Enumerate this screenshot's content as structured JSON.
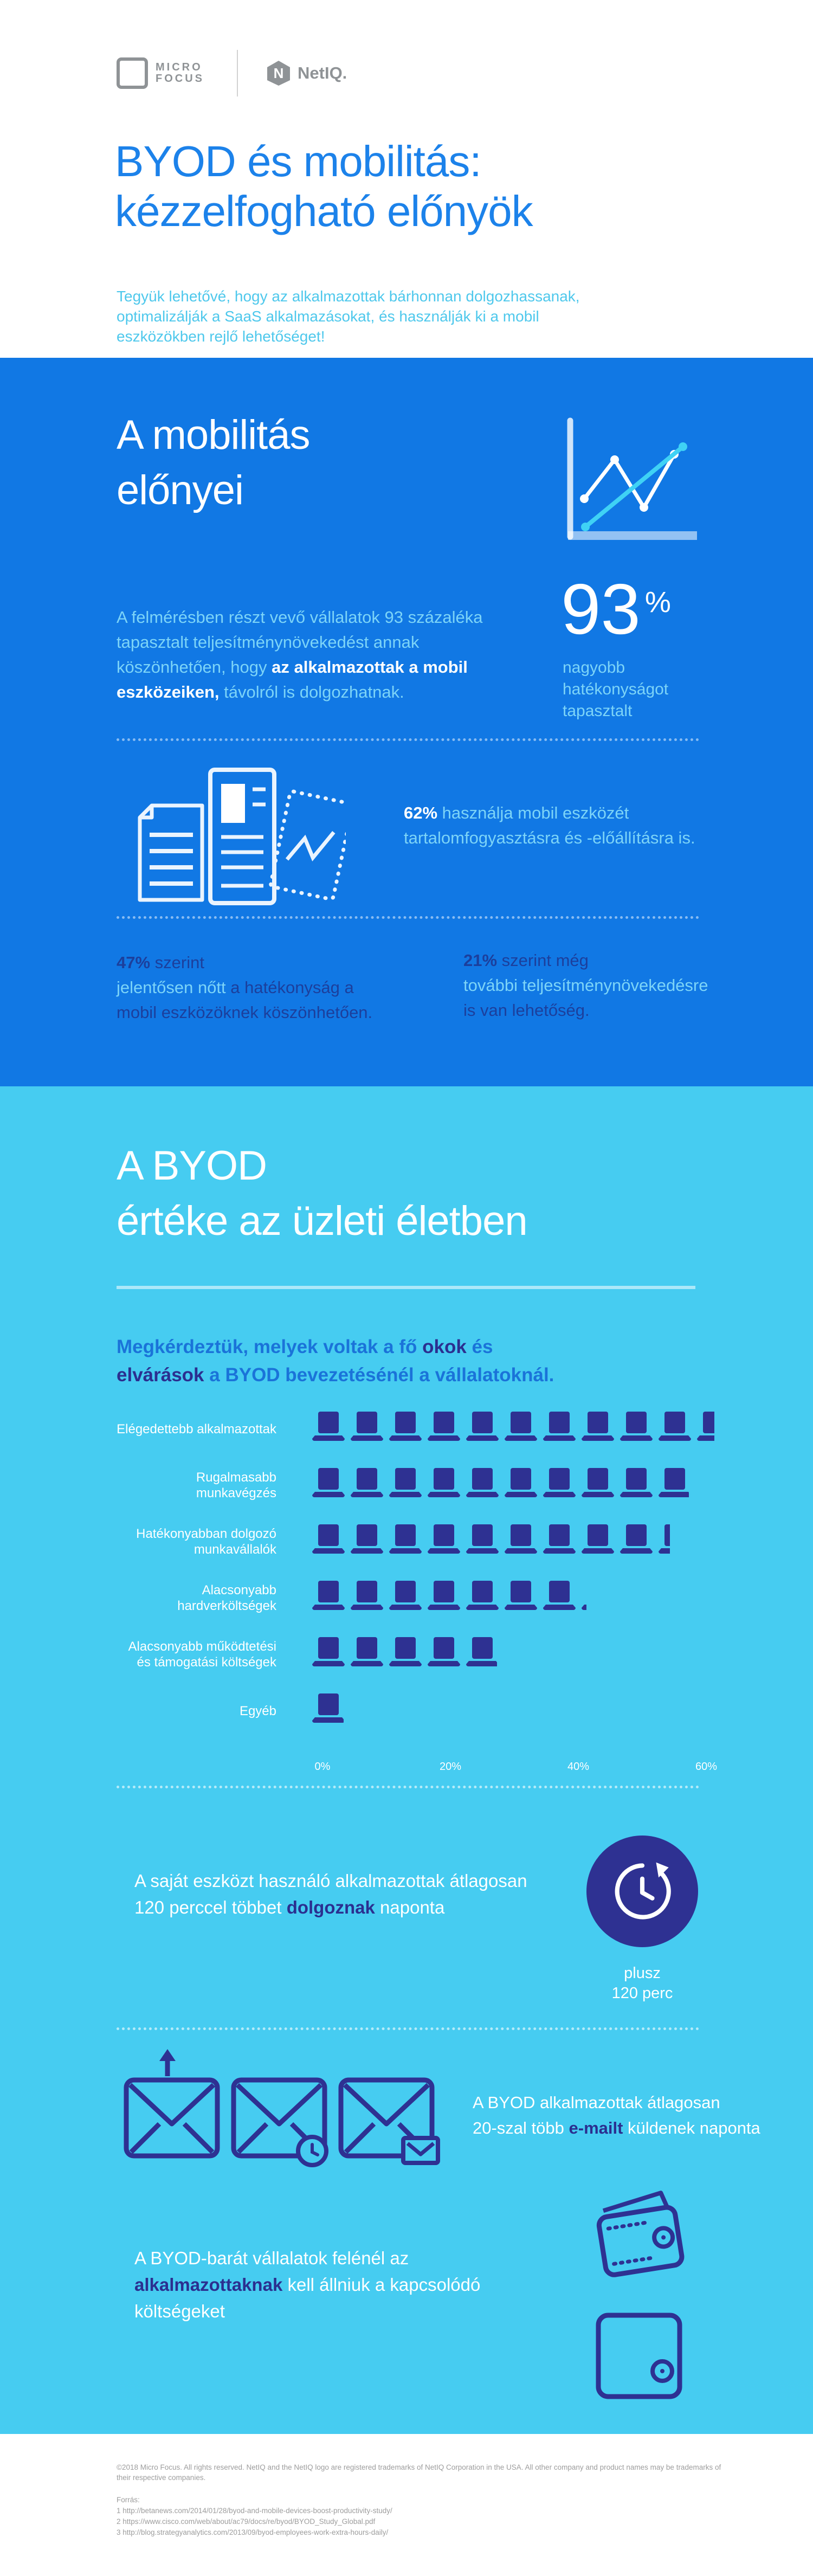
{
  "header": {
    "logo_micro_focus": {
      "line1": "MICRO",
      "line2": "FOCUS"
    },
    "logo_netiq": "NetIQ.",
    "title_line1": "BYOD és mobilitás:",
    "title_line2": "kézzelfogható előnyök",
    "intro": "Tegyük lehetővé, hogy az alkalmazottak bárhonnan dolgozhassanak,\noptimalizálják a SaaS alkalmazásokat, és használják ki a mobil\neszközökben rejlő lehetőséget!"
  },
  "mobility": {
    "title_line1": "A mobilitás",
    "title_line2": "előnyei",
    "paragraph": [
      {
        "t": "A felmérésben részt vevő vállalatok 93 százaléka\ntapasztalt teljesítménynövekedést annak\nköszönhetően, hogy ",
        "s": "cyan"
      },
      {
        "t": "az alkalmazottak a mobil\neszközeiken,",
        "s": "whiteb"
      },
      {
        "t": " távolról is dolgozhatnak.",
        "s": "cyan"
      }
    ],
    "stat93": {
      "value": "93",
      "unit": "%",
      "caption": "nagyobb\nhatékonyságot\ntapasztalt"
    },
    "stat62": [
      {
        "t": "62% ",
        "s": "whiteb"
      },
      {
        "t": "használja mobil eszközét\ntartalomfogyasztásra és -előállításra is.",
        "s": "cyan"
      }
    ],
    "stat47": [
      {
        "t": "47% ",
        "s": "navyb"
      },
      {
        "t": "szerint\n",
        "s": "navy"
      },
      {
        "t": "jelentősen nőtt ",
        "s": "cyan"
      },
      {
        "t": "a hatékonyság a\nmobil eszközöknek köszönhetően.",
        "s": "navy"
      }
    ],
    "stat21": [
      {
        "t": "21% ",
        "s": "navyb"
      },
      {
        "t": "szerint még\n",
        "s": "navy"
      },
      {
        "t": "további teljesítménynövekedésre\n",
        "s": "cyan"
      },
      {
        "t": "is van lehetőség.",
        "s": "navy"
      }
    ]
  },
  "byod": {
    "title_line1": "A BYOD",
    "title_line2": "értéke az üzleti életben",
    "intro": [
      {
        "t": "Megkérdeztük, melyek voltak a fő ",
        "s": "blue"
      },
      {
        "t": "okok",
        "s": "navyb"
      },
      {
        "t": " és\n",
        "s": "blue"
      },
      {
        "t": "elvárások",
        "s": "navyb"
      },
      {
        "t": " a BYOD bevezetésénél a vállalatoknál.",
        "s": "blue"
      }
    ],
    "minutes": [
      {
        "t": "A saját eszközt használó alkalmazottak átlagosan\n120 perccel többet ",
        "s": "white"
      },
      {
        "t": "dolgoznak",
        "s": "navyb"
      },
      {
        "t": " naponta",
        "s": "white"
      }
    ],
    "minutes_badge": "plusz\n120 perc",
    "emails": [
      {
        "t": "A BYOD alkalmazottak átlagosan\n20-szal több ",
        "s": "white"
      },
      {
        "t": "e-mailt",
        "s": "navyb"
      },
      {
        "t": " küldenek naponta",
        "s": "white"
      }
    ],
    "costs": [
      {
        "t": "A BYOD-barát vállalatok felénél az\n",
        "s": "white"
      },
      {
        "t": "alkalmazottaknak",
        "s": "navyb"
      },
      {
        "t": " kell állniuk a kapcsolódó\nköltségeket",
        "s": "white"
      }
    ]
  },
  "chart_data": {
    "type": "bar",
    "style": "laptop-pictograph",
    "title": "A BYOD értéke az üzleti életben — fő okok és elvárások",
    "categories": [
      "Elégedettebb alkalmazottak",
      "Rugalmasabb munkavégzés",
      "Hatékonyabban dolgozó munkavállalók",
      "Alacsonyabb hardverköltségek",
      "Alacsonyabb működtetési és támogatási költségek",
      "Egyéb"
    ],
    "values": [
      63,
      59,
      56,
      43,
      29,
      5
    ],
    "unit": "%",
    "xlim": [
      0,
      60
    ],
    "ticks": [
      "0%",
      "20%",
      "40%",
      "60%"
    ],
    "tick_values": [
      0,
      20,
      40,
      60
    ],
    "legend": "none",
    "bar_color": "#2e3192",
    "background": "#46ccf1"
  },
  "footer": {
    "copyright": "©2018 Micro Focus. All rights reserved. NetIQ and the NetIQ logo are registered trademarks of NetIQ Corporation in the USA. All other company and product names may be trademarks of their respective companies.",
    "sources_label": "Forrás:",
    "sources": [
      "1 http://betanews.com/2014/01/28/byod-and-mobile-devices-boost-productivity-study/",
      "2 https://www.cisco.com/web/about/ac79/docs/re/byod/BYOD_Study_Global.pdf",
      "3 http://blog.strategyanalytics.com/2013/09/byod-employees-work-extra-hours-daily/"
    ]
  },
  "colors": {
    "brand_blue": "#1178e4",
    "brand_cyan_bg": "#46ccf1",
    "title_blue": "#1c82ea",
    "light_cyan_text": "#7cd4f8",
    "navy": "#2e3192",
    "navy_text_on_blue": "#1c3f9c",
    "blue_text_on_cyan": "#1a73d9",
    "logo_gray": "#8f9396",
    "footer_gray": "#9d9d9d"
  }
}
